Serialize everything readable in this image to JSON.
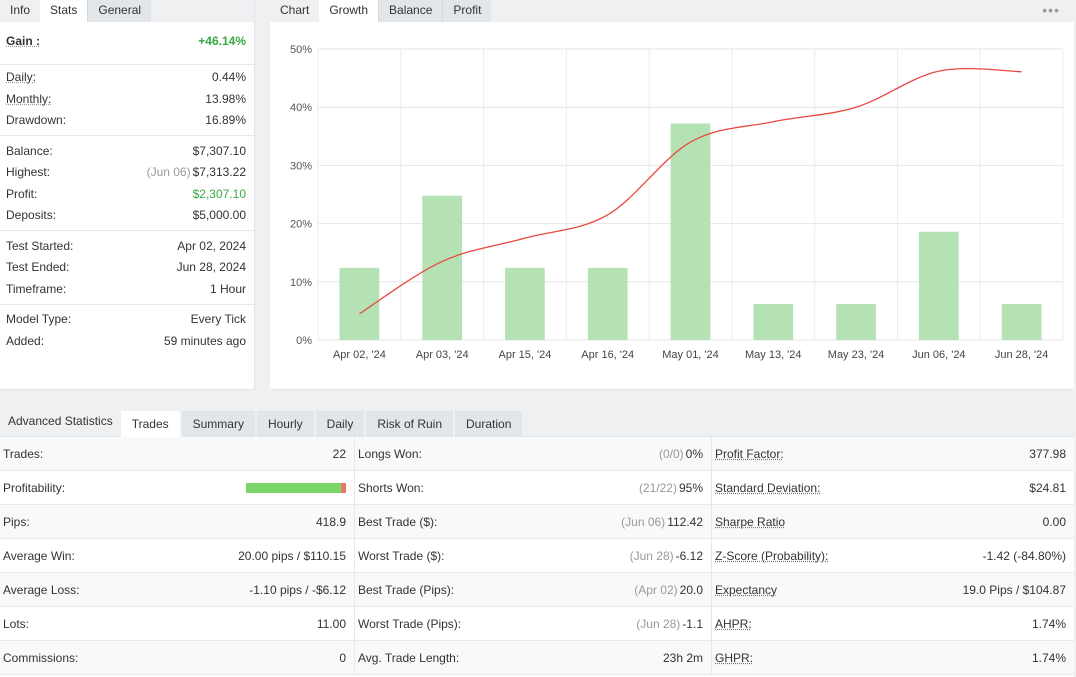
{
  "info_panel": {
    "tabs": [
      "Info",
      "Stats",
      "General"
    ],
    "gain": {
      "label": "Gain :",
      "value": "+46.14%"
    },
    "group1": [
      {
        "label": "Daily:",
        "value": "0.44%"
      },
      {
        "label": "Monthly:",
        "value": "13.98%"
      },
      {
        "label": "Drawdown:",
        "value": "16.89%"
      }
    ],
    "group2": [
      {
        "label": "Balance:",
        "value": "$7,307.10"
      },
      {
        "label": "Highest:",
        "note": "(Jun 06)",
        "value": "$7,313.22"
      },
      {
        "label": "Profit:",
        "value": "$2,307.10"
      },
      {
        "label": "Deposits:",
        "value": "$5,000.00"
      }
    ],
    "group3": [
      {
        "label": "Test Started:",
        "value": "Apr 02, 2024"
      },
      {
        "label": "Test Ended:",
        "value": "Jun 28, 2024"
      },
      {
        "label": "Timeframe:",
        "value": "1 Hour"
      }
    ],
    "group4": [
      {
        "label": "Model Type:",
        "value": "Every Tick"
      },
      {
        "label": "Added:",
        "value": "59 minutes ago"
      }
    ]
  },
  "chart_panel": {
    "tabs": [
      "Chart",
      "Growth",
      "Balance",
      "Profit"
    ],
    "menu_glyph": "•••"
  },
  "chart_data": {
    "type": "bar",
    "categories": [
      "Apr 02, '24",
      "Apr 03, '24",
      "Apr 15, '24",
      "Apr 16, '24",
      "May 01, '24",
      "May 13, '24",
      "May 23, '24",
      "Jun 06, '24",
      "Jun 28, '24"
    ],
    "bar_values": [
      12.4,
      24.8,
      12.4,
      12.4,
      37.2,
      6.2,
      6.2,
      18.6,
      6.2
    ],
    "line_values": [
      4.5,
      13.5,
      17.5,
      21.5,
      34,
      37.5,
      40,
      46.2,
      46.1
    ],
    "yticks": [
      "0%",
      "10%",
      "20%",
      "30%",
      "40%",
      "50%"
    ],
    "ylim": [
      0,
      50
    ],
    "grid": true,
    "bar_color": "#b5e2b4",
    "line_color": "#e8493f"
  },
  "advanced": {
    "title": "Advanced Statistics",
    "tabs": [
      "Trades",
      "Summary",
      "Hourly",
      "Daily",
      "Risk of Ruin",
      "Duration"
    ],
    "col1": [
      {
        "label": "Trades:",
        "value": "22"
      },
      {
        "label": "Profitability:",
        "value": ""
      },
      {
        "label": "Pips:",
        "value": "418.9"
      },
      {
        "label": "Average Win:",
        "value": "20.00 pips / $110.15"
      },
      {
        "label": "Average Loss:",
        "value": "-1.10 pips / -$6.12"
      },
      {
        "label": "Lots:",
        "value": "11.00"
      },
      {
        "label": "Commissions:",
        "value": "0"
      }
    ],
    "profitability_fraction": 0.95,
    "col2": [
      {
        "label": "Longs Won:",
        "note": "(0/0)",
        "value": "0%"
      },
      {
        "label": "Shorts Won:",
        "note": "(21/22)",
        "value": "95%"
      },
      {
        "label": "Best Trade ($):",
        "note": "(Jun 06)",
        "value": "112.42"
      },
      {
        "label": "Worst Trade ($):",
        "note": "(Jun 28)",
        "value": "-6.12"
      },
      {
        "label": "Best Trade (Pips):",
        "note": "(Apr 02)",
        "value": "20.0"
      },
      {
        "label": "Worst Trade (Pips):",
        "note": "(Jun 28)",
        "value": "-1.1"
      },
      {
        "label": "Avg. Trade Length:",
        "note": "",
        "value": "23h 2m"
      }
    ],
    "col3": [
      {
        "label": "Profit Factor:",
        "value": "377.98"
      },
      {
        "label": "Standard Deviation:",
        "value": "$24.81"
      },
      {
        "label": "Sharpe Ratio",
        "value": "0.00"
      },
      {
        "label": "Z-Score (Probability):",
        "value": "-1.42 (-84.80%)"
      },
      {
        "label": "Expectancy",
        "value": "19.0 Pips / $104.87"
      },
      {
        "label": "AHPR:",
        "value": "1.74%"
      },
      {
        "label": "GHPR:",
        "value": "1.74%"
      }
    ]
  }
}
